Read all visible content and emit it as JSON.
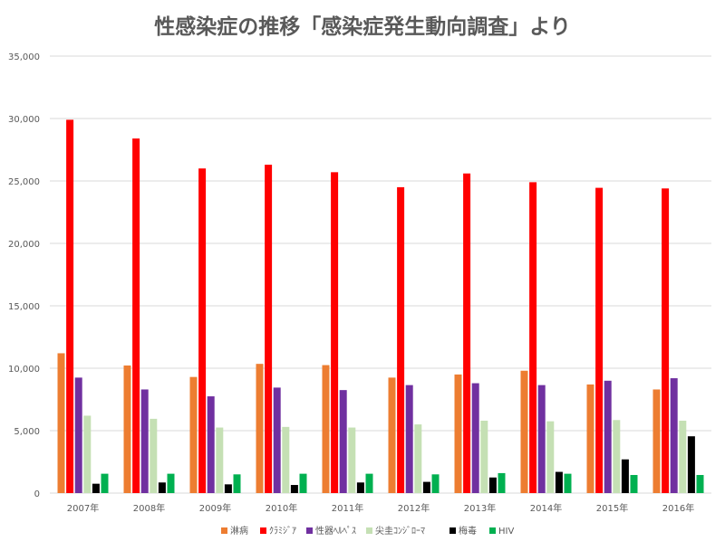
{
  "chart_data": {
    "type": "bar",
    "title": "性感染症の推移「感染症発生動向調査」より",
    "xlabel": "",
    "ylabel": "",
    "ylim": [
      0,
      35000
    ],
    "yticks": [
      0,
      5000,
      10000,
      15000,
      20000,
      25000,
      30000,
      35000
    ],
    "ytick_labels": [
      "0",
      "5,000",
      "10,000",
      "15,000",
      "20,000",
      "25,000",
      "30,000",
      "35,000"
    ],
    "grid": true,
    "legend_position": "bottom",
    "categories": [
      "2007年",
      "2008年",
      "2009年",
      "2010年",
      "2011年",
      "2012年",
      "2013年",
      "2014年",
      "2015年",
      "2016年"
    ],
    "series": [
      {
        "name": "淋病",
        "color": "#ed7d31",
        "values": [
          11200,
          10220,
          9300,
          10350,
          10250,
          9250,
          9500,
          9800,
          8700,
          8300
        ]
      },
      {
        "name": "ｸﾗﾐｼﾞｱ",
        "color": "#ff0000",
        "values": [
          29900,
          28400,
          26000,
          26300,
          25700,
          24500,
          25600,
          24900,
          24450,
          24400
        ]
      },
      {
        "name": "性器ﾍﾙﾍﾟｽ",
        "color": "#7030a0",
        "values": [
          9250,
          8300,
          7750,
          8450,
          8250,
          8650,
          8800,
          8650,
          9000,
          9200
        ]
      },
      {
        "name": "尖圭ｺﾝｼﾞﾛｰﾏ",
        "color": "#c5e0b4",
        "values": [
          6200,
          5950,
          5250,
          5300,
          5250,
          5500,
          5800,
          5750,
          5850,
          5800
        ]
      },
      {
        "name": "梅毒",
        "color": "#000000",
        "values": [
          750,
          850,
          700,
          650,
          850,
          900,
          1250,
          1700,
          2700,
          4550
        ]
      },
      {
        "name": "HIV",
        "color": "#00b050",
        "values": [
          1550,
          1550,
          1500,
          1550,
          1550,
          1500,
          1600,
          1550,
          1450,
          1450
        ]
      }
    ]
  }
}
